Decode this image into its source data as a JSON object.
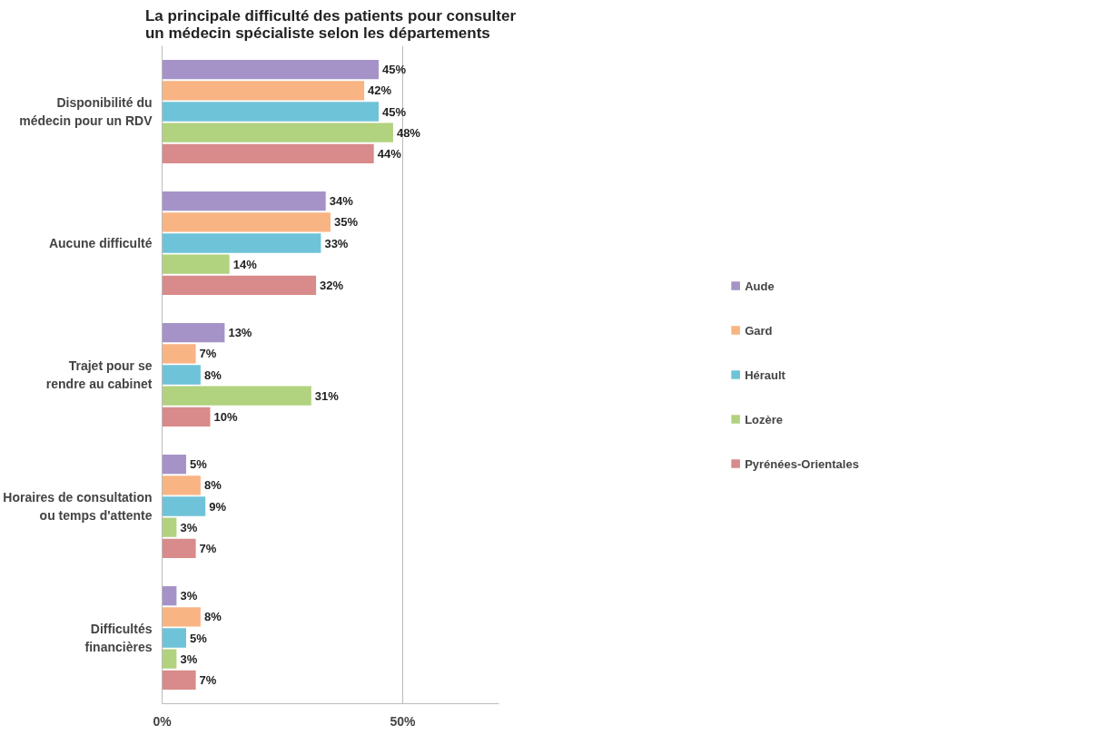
{
  "chart_data": {
    "type": "bar",
    "orientation": "horizontal",
    "title": "La principale difficulté des patients pour consulter un médecin spécialiste selon les départements",
    "categories": [
      "Disponibilité du médecin pour un RDV",
      "Aucune difficulté",
      "Trajet pour se rendre au cabinet",
      "Horaires de consultation ou temps d'attente",
      "Difficultés financières"
    ],
    "series": [
      {
        "name": "Aude",
        "color": "#a593c8",
        "values": [
          45,
          34,
          13,
          5,
          3
        ],
        "value_labels": [
          "45%",
          "34%",
          "13%",
          "5%",
          "3%"
        ]
      },
      {
        "name": "Gard",
        "color": "#f9b484",
        "values": [
          42,
          35,
          7,
          8,
          8
        ],
        "value_labels": [
          "42%",
          "35%",
          "7%",
          "8%",
          "8%"
        ]
      },
      {
        "name": "Hérault",
        "color": "#6fc3d8",
        "values": [
          45,
          33,
          8,
          9,
          5
        ],
        "value_labels": [
          "45%",
          "33%",
          "8%",
          "9%",
          "5%"
        ]
      },
      {
        "name": "Lozère",
        "color": "#b1d27f",
        "values": [
          48,
          14,
          31,
          3,
          3
        ],
        "value_labels": [
          "48%",
          "14%",
          "31%",
          "3%",
          "3%"
        ]
      },
      {
        "name": "Pyrénées-Orientales",
        "color": "#d88b8a",
        "values": [
          44,
          32,
          10,
          7,
          7
        ],
        "value_labels": [
          "44%",
          "32%",
          "10%",
          "7%",
          "7%"
        ]
      }
    ],
    "xlim": [
      0,
      70
    ],
    "xticks": [
      {
        "value": 0,
        "label": "0%"
      },
      {
        "value": 50,
        "label": "50%"
      }
    ],
    "grid": "x",
    "legend": "right"
  }
}
